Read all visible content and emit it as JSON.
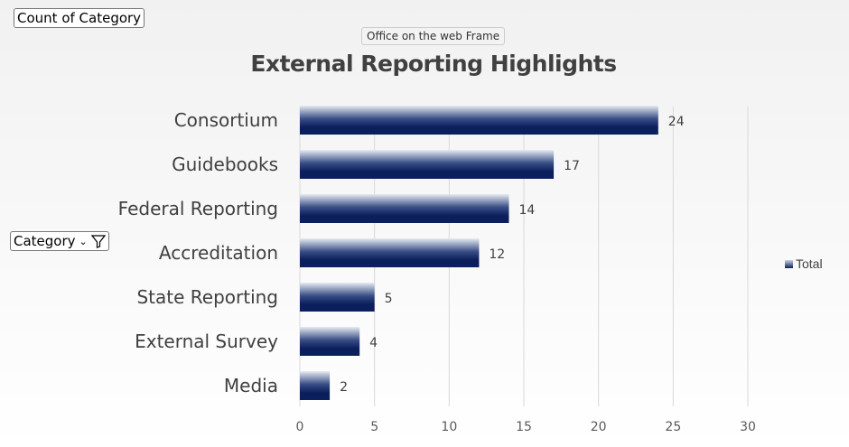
{
  "controls": {
    "value_field": "Count of Category",
    "row_field": "Category"
  },
  "tooltip": "Office on the web Frame",
  "chart_data": {
    "type": "bar",
    "orientation": "horizontal",
    "title": "External Reporting Highlights",
    "categories": [
      "Consortium",
      "Guidebooks",
      "Federal Reporting",
      "Accreditation",
      "State Reporting",
      "External Survey",
      "Media"
    ],
    "series": [
      {
        "name": "Total",
        "values": [
          24,
          17,
          14,
          12,
          5,
          4,
          2
        ]
      }
    ],
    "xlim": [
      0,
      30
    ],
    "xticks": [
      0,
      5,
      10,
      15,
      20,
      25,
      30
    ],
    "grid": true,
    "legend": "right",
    "colors": {
      "bar_top": "#d3dbe8",
      "bar_bottom": "#0a1f5c"
    }
  }
}
